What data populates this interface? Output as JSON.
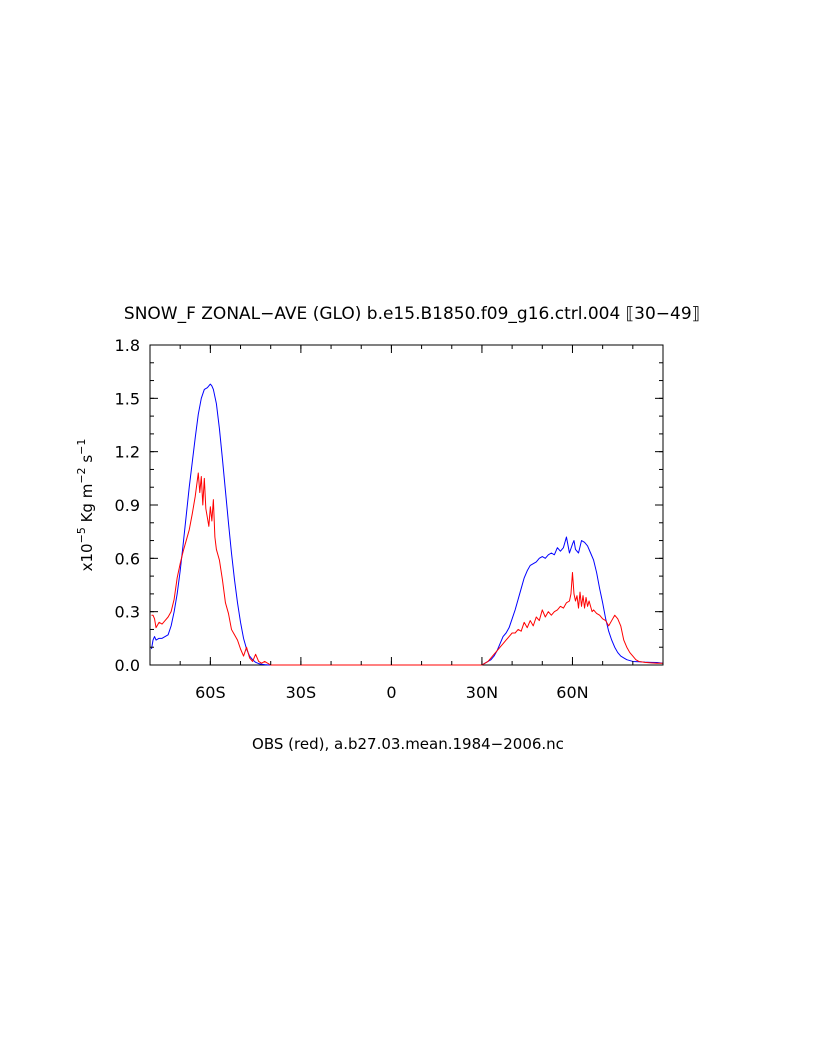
{
  "chart_data": {
    "type": "line",
    "title": "SNOW_F ZONAL−AVE (GLO) b.e15.B1850.f09_g16.ctrl.004 ⟦30−49⟧",
    "xlabel": "OBS (red), a.b27.03.mean.1984−2006.nc",
    "ylabel": {
      "prefix": "x10",
      "exp1": "−5",
      "unit1": " Kg m",
      "exp2": "−2",
      "unit2": " s",
      "exp3": "−1"
    },
    "xlim": [
      -80,
      90
    ],
    "ylim": [
      0,
      1.8
    ],
    "x_ticks": [
      {
        "value": -60,
        "label": "60S"
      },
      {
        "value": -30,
        "label": "30S"
      },
      {
        "value": 0,
        "label": "0"
      },
      {
        "value": 30,
        "label": "30N"
      },
      {
        "value": 60,
        "label": "60N"
      }
    ],
    "y_ticks": [
      {
        "value": 0.0,
        "label": "0.0"
      },
      {
        "value": 0.3,
        "label": "0.3"
      },
      {
        "value": 0.6,
        "label": "0.6"
      },
      {
        "value": 0.9,
        "label": "0.9"
      },
      {
        "value": 1.2,
        "label": "1.2"
      },
      {
        "value": 1.5,
        "label": "1.5"
      },
      {
        "value": 1.8,
        "label": "1.8"
      }
    ],
    "series": [
      {
        "color": "#0000ff",
        "x": [
          -79.5,
          -79,
          -78.5,
          -78,
          -77,
          -76,
          -75,
          -74,
          -73,
          -72,
          -71,
          -70,
          -69,
          -68,
          -67,
          -66,
          -65,
          -64,
          -63,
          -62,
          -61,
          -60,
          -59.5,
          -59,
          -58,
          -57,
          -56,
          -55,
          -54,
          -53,
          -52,
          -51,
          -50,
          -49,
          -48,
          -47,
          -46,
          -45,
          -44,
          -43,
          -42,
          -41,
          -40,
          -38,
          -36,
          -30,
          -20,
          0,
          20,
          30,
          31,
          32,
          33,
          34,
          35,
          36,
          37,
          38,
          39,
          40,
          41,
          42,
          43,
          44,
          45,
          46,
          47,
          48,
          49,
          50,
          51,
          52,
          53,
          54,
          55,
          56,
          57,
          58,
          59,
          60,
          60.5,
          61,
          62,
          63,
          64,
          65,
          66,
          67,
          68,
          69,
          70,
          71,
          72,
          73,
          74,
          75,
          76,
          77,
          78,
          79,
          80,
          82,
          84,
          86,
          88,
          90
        ],
        "values": [
          0.09,
          0.14,
          0.16,
          0.14,
          0.15,
          0.15,
          0.16,
          0.17,
          0.22,
          0.3,
          0.4,
          0.53,
          0.68,
          0.84,
          1.0,
          1.14,
          1.28,
          1.41,
          1.5,
          1.55,
          1.56,
          1.58,
          1.57,
          1.55,
          1.47,
          1.33,
          1.16,
          0.98,
          0.8,
          0.63,
          0.48,
          0.35,
          0.24,
          0.15,
          0.09,
          0.05,
          0.03,
          0.015,
          0.008,
          0.004,
          0.002,
          0.001,
          0.0,
          0.0,
          0.0,
          0.0,
          0.0,
          0.0,
          0.0,
          0.0,
          0.01,
          0.02,
          0.03,
          0.05,
          0.08,
          0.12,
          0.16,
          0.18,
          0.21,
          0.26,
          0.31,
          0.37,
          0.43,
          0.49,
          0.53,
          0.56,
          0.57,
          0.58,
          0.6,
          0.61,
          0.6,
          0.62,
          0.63,
          0.62,
          0.66,
          0.64,
          0.66,
          0.72,
          0.63,
          0.68,
          0.7,
          0.65,
          0.63,
          0.7,
          0.69,
          0.67,
          0.63,
          0.59,
          0.52,
          0.43,
          0.35,
          0.26,
          0.19,
          0.14,
          0.1,
          0.07,
          0.05,
          0.04,
          0.03,
          0.025,
          0.02,
          0.018,
          0.016,
          0.015,
          0.014,
          0.01
        ]
      },
      {
        "color": "#ff0000",
        "x": [
          -79.5,
          -79,
          -78.5,
          -78,
          -77,
          -76,
          -75,
          -74,
          -73,
          -72,
          -71,
          -70,
          -69,
          -68,
          -67,
          -66,
          -65,
          -64,
          -63.5,
          -63,
          -62.5,
          -62,
          -61.5,
          -61,
          -60.5,
          -60,
          -59.5,
          -59,
          -58.5,
          -58,
          -57.5,
          -57,
          -56,
          -55,
          -54,
          -53,
          -52,
          -51,
          -50,
          -49,
          -48,
          -47,
          -46,
          -45,
          -44,
          -43,
          -42,
          -40,
          -36,
          -30,
          -20,
          0,
          20,
          30,
          32,
          33,
          34,
          35,
          36,
          37,
          38,
          39,
          40,
          41,
          42,
          43,
          44,
          45,
          46,
          47,
          48,
          49,
          50,
          51,
          52,
          53,
          54,
          55,
          56,
          57,
          58,
          59,
          59.5,
          60,
          60.5,
          61,
          61.5,
          62,
          62.5,
          63,
          63.5,
          64,
          64.5,
          65,
          65.5,
          66,
          66.5,
          67,
          68,
          69,
          70,
          71,
          72,
          73,
          74,
          75,
          76,
          77,
          78,
          79,
          80,
          81,
          82,
          84,
          86,
          88,
          90
        ],
        "values": [
          0.28,
          0.28,
          0.26,
          0.21,
          0.24,
          0.23,
          0.25,
          0.27,
          0.3,
          0.37,
          0.49,
          0.57,
          0.64,
          0.7,
          0.76,
          0.85,
          0.95,
          1.08,
          0.97,
          1.06,
          0.9,
          1.05,
          0.88,
          0.83,
          0.78,
          0.89,
          0.81,
          0.93,
          0.72,
          0.65,
          0.62,
          0.59,
          0.48,
          0.35,
          0.29,
          0.2,
          0.17,
          0.14,
          0.09,
          0.05,
          0.1,
          0.04,
          0.02,
          0.06,
          0.02,
          0.01,
          0.02,
          0.0,
          0.0,
          0.0,
          0.0,
          0.0,
          0.0,
          0.0,
          0.02,
          0.04,
          0.06,
          0.08,
          0.1,
          0.12,
          0.14,
          0.16,
          0.18,
          0.18,
          0.2,
          0.19,
          0.24,
          0.21,
          0.25,
          0.22,
          0.27,
          0.25,
          0.31,
          0.27,
          0.3,
          0.28,
          0.3,
          0.31,
          0.33,
          0.32,
          0.35,
          0.36,
          0.4,
          0.52,
          0.4,
          0.36,
          0.39,
          0.32,
          0.41,
          0.33,
          0.39,
          0.32,
          0.38,
          0.33,
          0.36,
          0.33,
          0.3,
          0.31,
          0.29,
          0.28,
          0.26,
          0.25,
          0.22,
          0.25,
          0.28,
          0.26,
          0.22,
          0.14,
          0.1,
          0.07,
          0.05,
          0.03,
          0.02,
          0.015,
          0.012,
          0.01,
          0.01
        ]
      }
    ],
    "grid": false,
    "legend": "none"
  }
}
